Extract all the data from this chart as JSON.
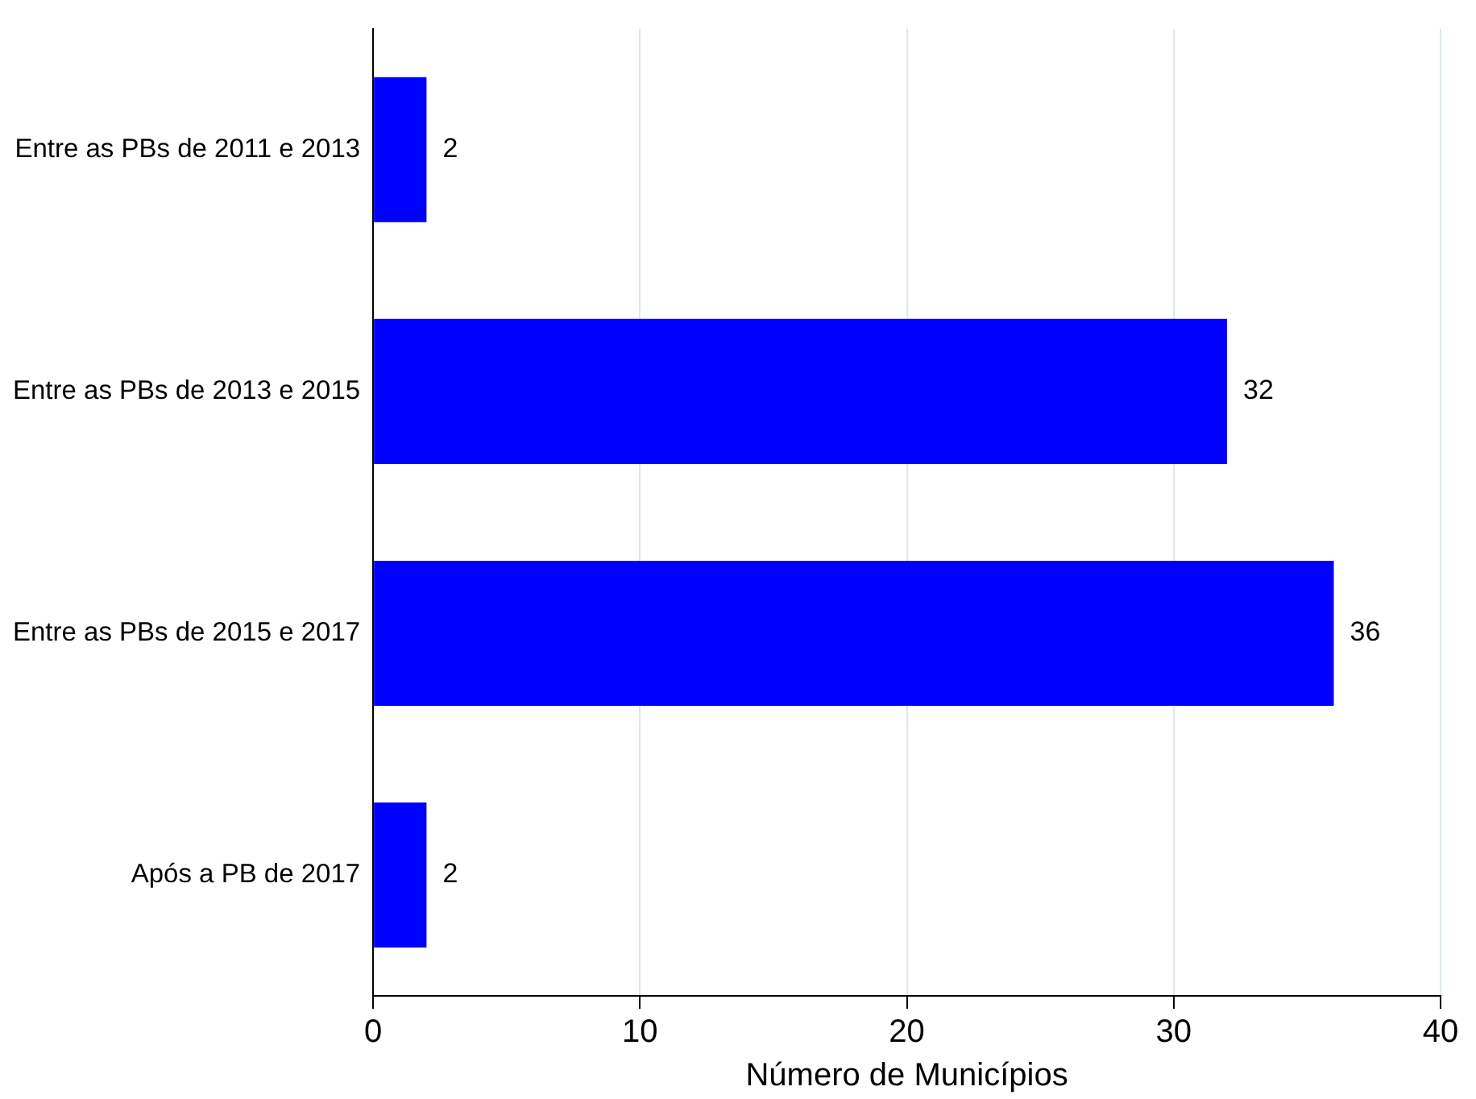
{
  "chart_data": {
    "type": "bar",
    "orientation": "horizontal",
    "xlabel": "Número de Municípios",
    "categories": [
      "Entre as PBs de 2011 e 2013",
      "Entre as PBs de 2013 e 2015",
      "Entre as PBs de 2015 e 2017",
      "Após a PB de 2017"
    ],
    "values": [
      2,
      32,
      36,
      2
    ],
    "color": "#0000ff",
    "xlim": [
      0,
      40
    ],
    "xticks": [
      0,
      10,
      20,
      30,
      40
    ],
    "grid": "x",
    "data_labels": true,
    "legend": false
  }
}
